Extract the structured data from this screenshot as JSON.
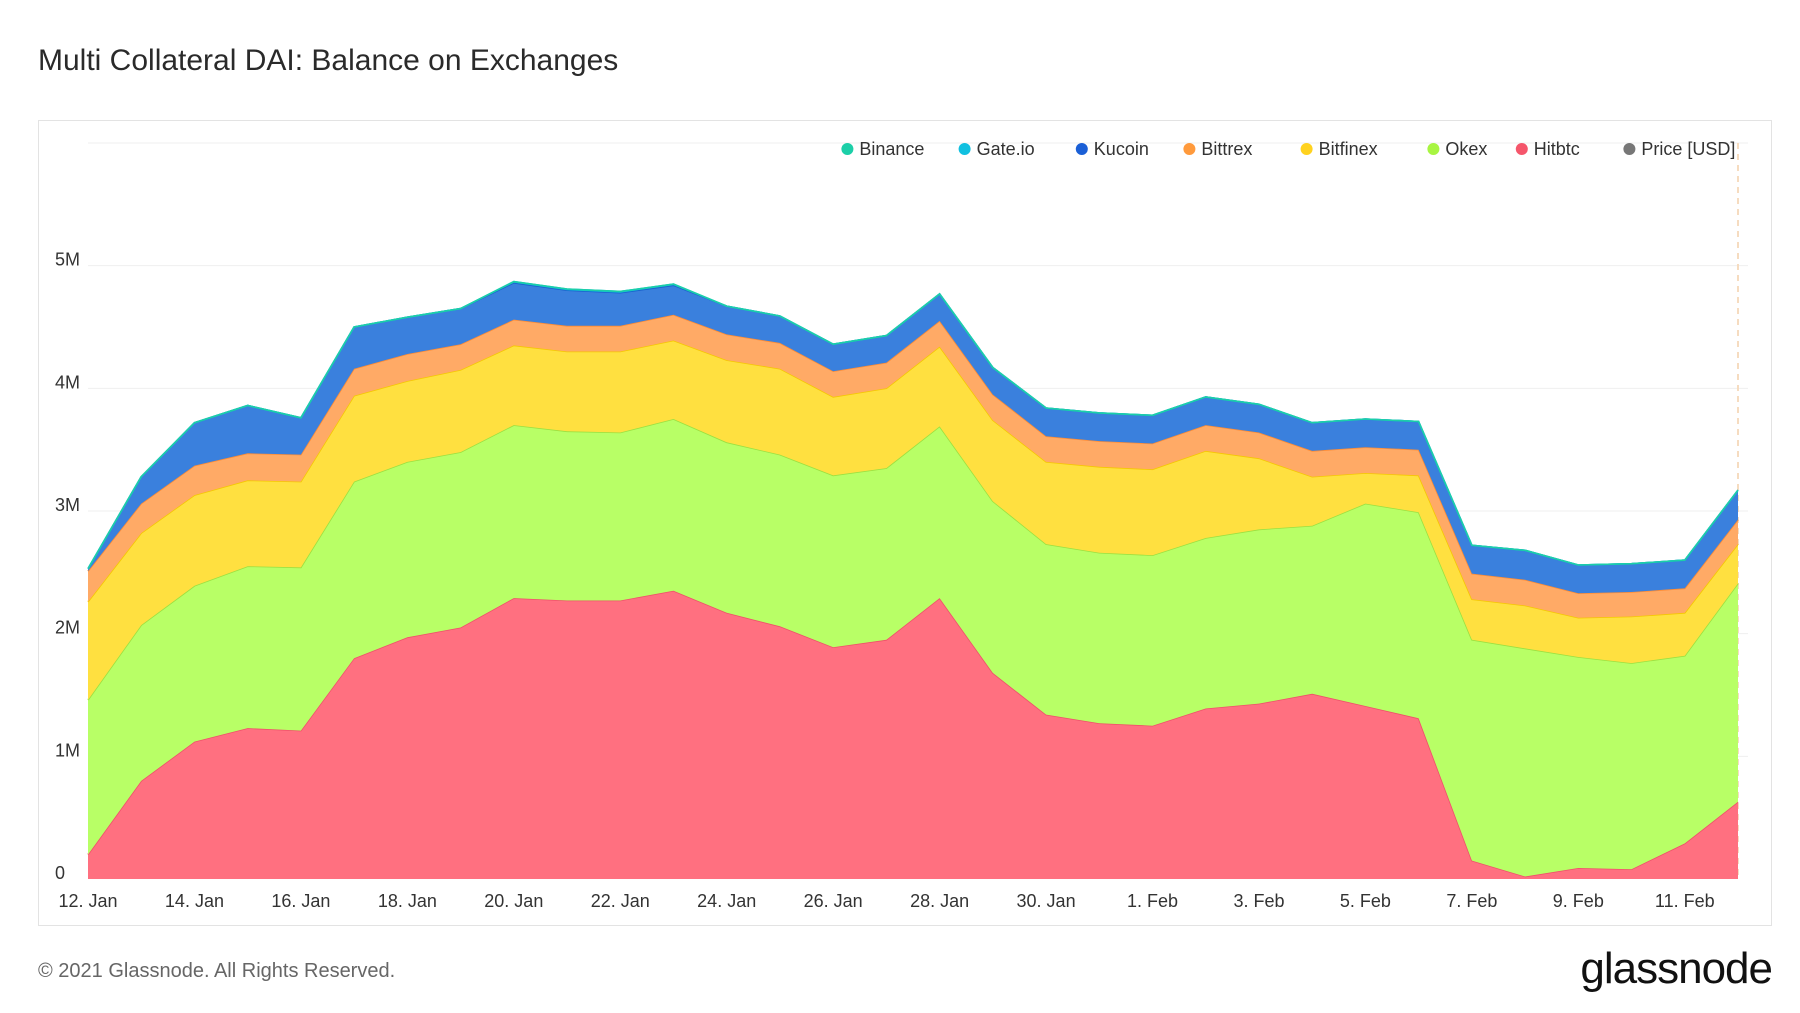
{
  "page": {
    "title": "Multi Collateral DAI: Balance on Exchanges",
    "footer": "© 2021 Glassnode. All Rights Reserved.",
    "brand": "glassnode",
    "watermark": "glassnode"
  },
  "chart_data": {
    "type": "area",
    "stacked": true,
    "title": "Multi Collateral DAI: Balance on Exchanges",
    "xlabel": "",
    "ylabel": "",
    "ylim": [
      0,
      6000000
    ],
    "yticks": [
      0,
      1000000,
      2000000,
      3000000,
      4000000,
      5000000
    ],
    "ytick_labels": [
      "0",
      "1M",
      "2M",
      "3M",
      "4M",
      "5M"
    ],
    "xtick_labels": [
      "12. Jan",
      "14. Jan",
      "16. Jan",
      "18. Jan",
      "20. Jan",
      "22. Jan",
      "24. Jan",
      "26. Jan",
      "28. Jan",
      "30. Jan",
      "1. Feb",
      "3. Feb",
      "5. Feb",
      "7. Feb",
      "9. Feb",
      "11. Feb"
    ],
    "x": [
      "12. Jan",
      "13. Jan",
      "14. Jan",
      "15. Jan",
      "16. Jan",
      "17. Jan",
      "18. Jan",
      "19. Jan",
      "20. Jan",
      "21. Jan",
      "22. Jan",
      "23. Jan",
      "24. Jan",
      "25. Jan",
      "26. Jan",
      "27. Jan",
      "28. Jan",
      "29. Jan",
      "30. Jan",
      "31. Jan",
      "1. Feb",
      "2. Feb",
      "3. Feb",
      "4. Feb",
      "5. Feb",
      "6. Feb",
      "7. Feb",
      "8. Feb",
      "9. Feb",
      "10. Feb",
      "11. Feb",
      "12. Feb"
    ],
    "legend_position": "top-right",
    "series": [
      {
        "name": "Hitbtc",
        "color": "#ff7080",
        "line": "#f0506a",
        "values": [
          200000,
          800000,
          1120000,
          1230000,
          1210000,
          1800000,
          1970000,
          2050000,
          2290000,
          2270000,
          2270000,
          2350000,
          2170000,
          2060000,
          1890000,
          1950000,
          2290000,
          1680000,
          1340000,
          1270000,
          1250000,
          1390000,
          1430000,
          1510000,
          1410000,
          1310000,
          150000,
          20000,
          90000,
          80000,
          290000,
          630000
        ]
      },
      {
        "name": "Okex",
        "color": "#b8ff66",
        "line": "#9be040",
        "values": [
          1260000,
          1270000,
          1270000,
          1320000,
          1330000,
          1440000,
          1430000,
          1430000,
          1410000,
          1380000,
          1370000,
          1400000,
          1390000,
          1400000,
          1400000,
          1400000,
          1400000,
          1400000,
          1390000,
          1390000,
          1390000,
          1390000,
          1420000,
          1370000,
          1650000,
          1680000,
          1800000,
          1860000,
          1720000,
          1680000,
          1530000,
          1780000
        ]
      },
      {
        "name": "Bitfinex",
        "color": "#ffe040",
        "line": "#f5c800",
        "values": [
          800000,
          750000,
          740000,
          700000,
          700000,
          700000,
          660000,
          670000,
          650000,
          650000,
          660000,
          640000,
          670000,
          700000,
          640000,
          650000,
          650000,
          660000,
          670000,
          700000,
          700000,
          710000,
          580000,
          400000,
          250000,
          300000,
          330000,
          350000,
          320000,
          380000,
          350000,
          320000
        ]
      },
      {
        "name": "Bittrex",
        "color": "#ffaa66",
        "line": "#ff8c33",
        "values": [
          250000,
          240000,
          240000,
          220000,
          220000,
          220000,
          220000,
          210000,
          210000,
          210000,
          210000,
          210000,
          210000,
          210000,
          210000,
          210000,
          210000,
          210000,
          210000,
          210000,
          210000,
          210000,
          210000,
          210000,
          210000,
          210000,
          210000,
          210000,
          200000,
          200000,
          200000,
          200000
        ]
      },
      {
        "name": "Kucoin",
        "color": "#3a80dd",
        "line": "#1a60cc",
        "values": [
          20000,
          220000,
          350000,
          390000,
          300000,
          340000,
          300000,
          290000,
          300000,
          290000,
          270000,
          240000,
          230000,
          220000,
          220000,
          220000,
          220000,
          220000,
          230000,
          230000,
          230000,
          230000,
          230000,
          230000,
          230000,
          230000,
          230000,
          240000,
          230000,
          230000,
          230000,
          240000
        ]
      },
      {
        "name": "Gate.io",
        "color": "#11c0e0",
        "line": "#11c0e0",
        "values": [
          0,
          0,
          0,
          0,
          0,
          0,
          0,
          0,
          10000,
          10000,
          10000,
          10000,
          0,
          0,
          0,
          0,
          0,
          0,
          0,
          0,
          0,
          0,
          0,
          0,
          0,
          0,
          0,
          0,
          0,
          0,
          0,
          0
        ]
      },
      {
        "name": "Binance",
        "color": "#1ccfa8",
        "line": "#1ccfa8",
        "values": [
          0,
          0,
          0,
          0,
          0,
          0,
          0,
          0,
          0,
          0,
          0,
          0,
          0,
          0,
          0,
          0,
          0,
          0,
          0,
          0,
          0,
          0,
          0,
          0,
          0,
          0,
          0,
          0,
          0,
          0,
          0,
          0
        ]
      }
    ],
    "legend": [
      {
        "name": "Binance",
        "color": "#1ccfa8"
      },
      {
        "name": "Gate.io",
        "color": "#11c0e0"
      },
      {
        "name": "Kucoin",
        "color": "#1a5fd6"
      },
      {
        "name": "Bittrex",
        "color": "#ff9a3c"
      },
      {
        "name": "Bitfinex",
        "color": "#ffd21f"
      },
      {
        "name": "Okex",
        "color": "#a8f542"
      },
      {
        "name": "Hitbtc",
        "color": "#f5566b"
      },
      {
        "name": "Price [USD]",
        "color": "#777777",
        "inactive": true
      }
    ]
  }
}
